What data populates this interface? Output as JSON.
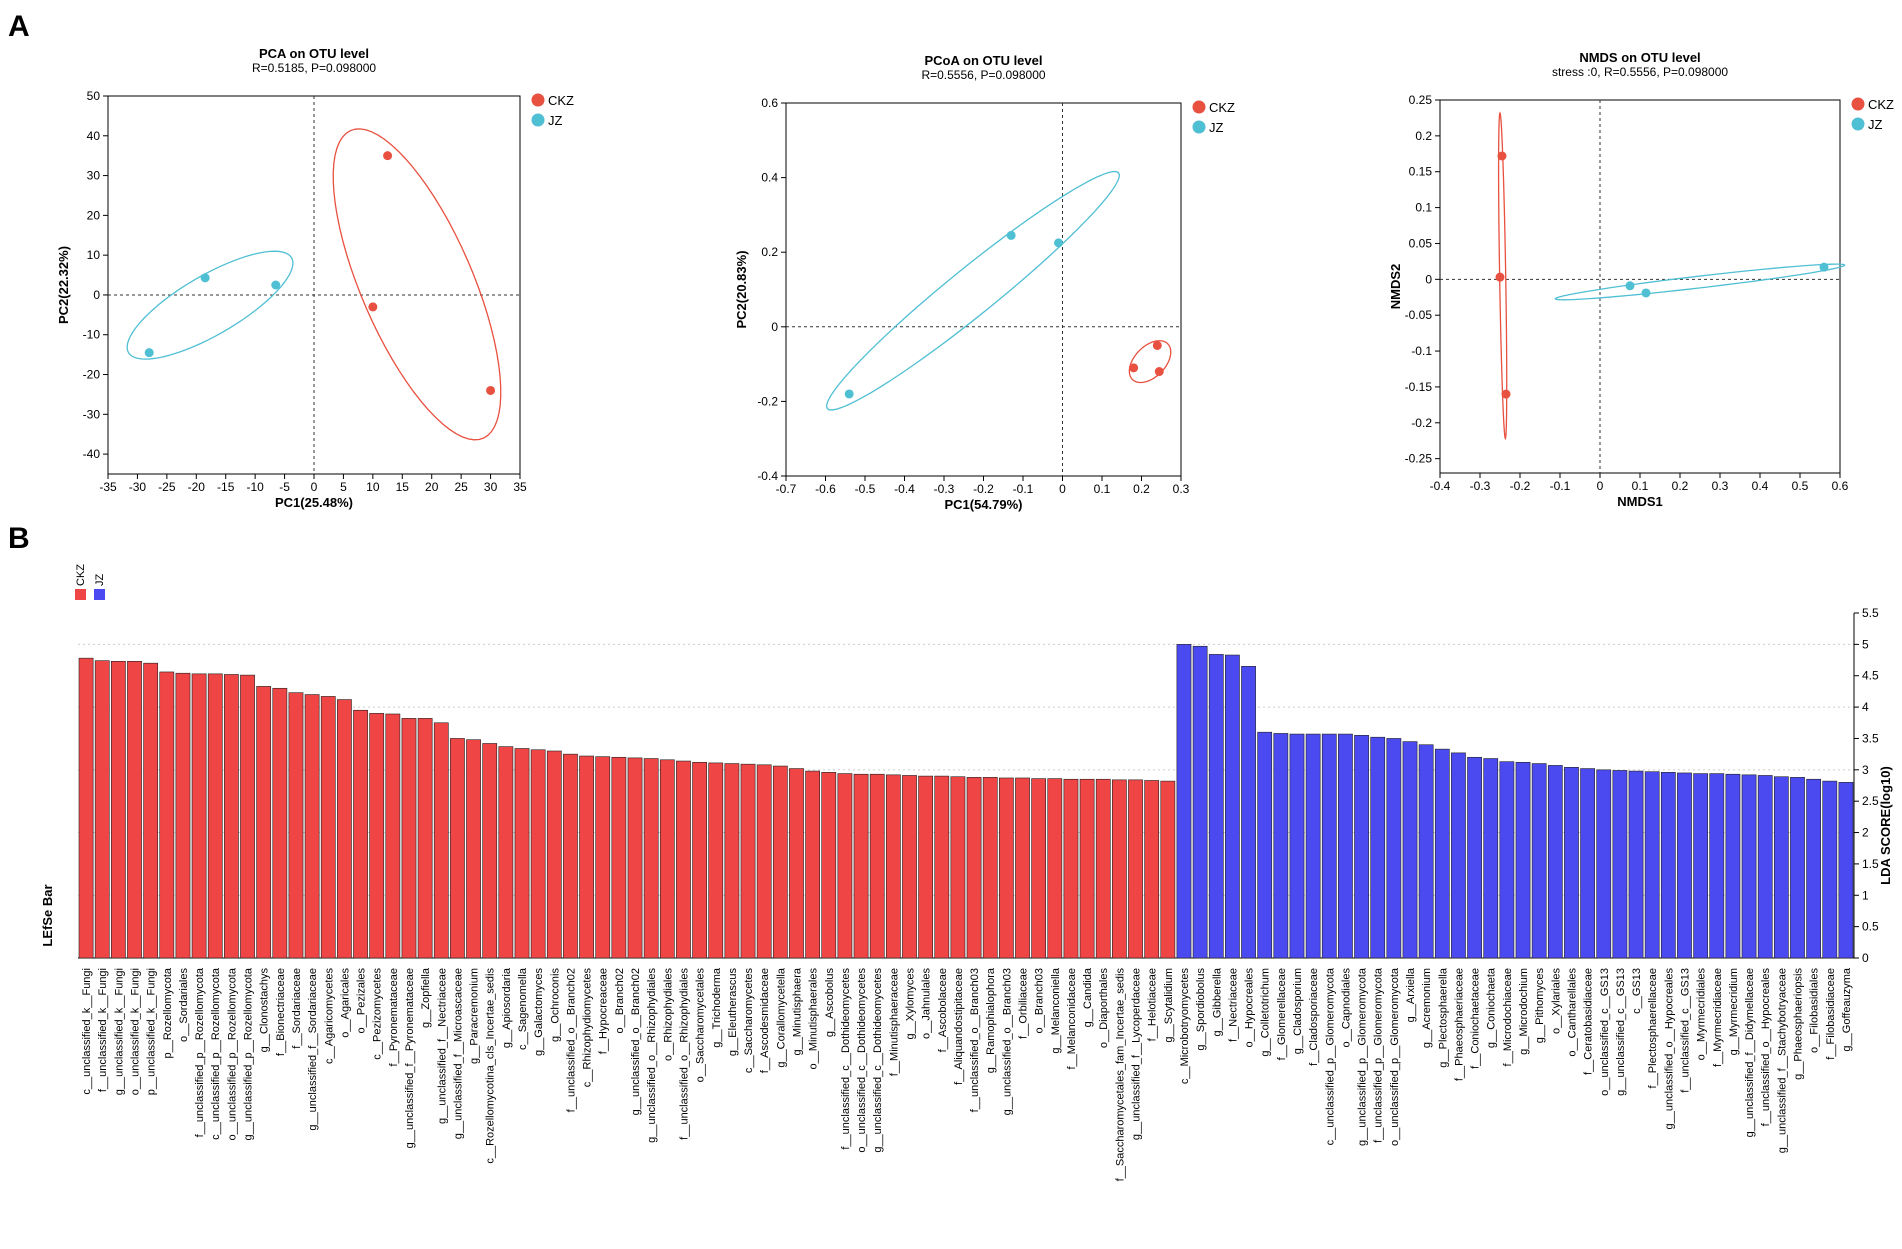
{
  "panels": {
    "a_label": "A",
    "b_label": "B"
  },
  "colors": {
    "ckz": "#e8503f",
    "jz": "#4fbfd3",
    "ckz_bar": "#f04545",
    "jz_bar": "#4a4af0"
  },
  "chart_data": [
    {
      "type": "scatter",
      "title": "PCA on OTU level",
      "subtitle": "R=0.5185, P=0.098000",
      "xlabel": "PC1(25.48%)",
      "ylabel": "PC2(22.32%)",
      "xlim": [
        -35,
        35
      ],
      "ylim": [
        -45,
        50
      ],
      "xticks": [
        -35,
        -30,
        -25,
        -20,
        -15,
        -10,
        -5,
        0,
        5,
        10,
        15,
        20,
        25,
        30,
        35
      ],
      "yticks": [
        -40,
        -30,
        -20,
        -10,
        0,
        10,
        20,
        30,
        40,
        50
      ],
      "legend": [
        "CKZ",
        "JZ"
      ],
      "series": [
        {
          "name": "CKZ",
          "points": [
            [
              12.5,
              35
            ],
            [
              10,
              -3
            ],
            [
              30,
              -24
            ]
          ]
        },
        {
          "name": "JZ",
          "points": [
            [
              -18.5,
              4.3
            ],
            [
              -6.5,
              2.5
            ],
            [
              -28,
              -14.5
            ]
          ]
        }
      ]
    },
    {
      "type": "scatter",
      "title": "PCoA on OTU level",
      "subtitle": "R=0.5556, P=0.098000",
      "xlabel": "PC1(54.79%)",
      "ylabel": "PC2(20.83%)",
      "xlim": [
        -0.7,
        0.3
      ],
      "ylim": [
        -0.4,
        0.6
      ],
      "xticks": [
        -0.7,
        -0.6,
        -0.5,
        -0.4,
        -0.3,
        -0.2,
        -0.1,
        0,
        0.1,
        0.2,
        0.3
      ],
      "yticks": [
        -0.4,
        -0.2,
        0,
        0.2,
        0.4,
        0.6
      ],
      "legend": [
        "CKZ",
        "JZ"
      ],
      "series": [
        {
          "name": "CKZ",
          "points": [
            [
              0.24,
              -0.05
            ],
            [
              0.18,
              -0.11
            ],
            [
              0.245,
              -0.12
            ]
          ]
        },
        {
          "name": "JZ",
          "points": [
            [
              -0.13,
              0.245
            ],
            [
              -0.01,
              0.225
            ],
            [
              -0.54,
              -0.18
            ]
          ]
        }
      ]
    },
    {
      "type": "scatter",
      "title": "NMDS on OTU level",
      "subtitle": "stress :0, R=0.5556, P=0.098000",
      "xlabel": "NMDS1",
      "ylabel": "NMDS2",
      "xlim": [
        -0.4,
        0.6
      ],
      "ylim": [
        -0.27,
        0.25
      ],
      "xticks": [
        -0.4,
        -0.3,
        -0.2,
        -0.1,
        0,
        0.1,
        0.2,
        0.3,
        0.4,
        0.5,
        0.6
      ],
      "yticks": [
        -0.25,
        -0.2,
        -0.15,
        -0.1,
        -0.05,
        0,
        0.05,
        0.1,
        0.15,
        0.2,
        0.25
      ],
      "legend": [
        "CKZ",
        "JZ"
      ],
      "series": [
        {
          "name": "CKZ",
          "points": [
            [
              -0.245,
              0.172
            ],
            [
              -0.25,
              0.003
            ],
            [
              -0.235,
              -0.16
            ]
          ]
        },
        {
          "name": "JZ",
          "points": [
            [
              0.075,
              -0.009
            ],
            [
              0.115,
              -0.019
            ],
            [
              0.56,
              0.017
            ]
          ]
        }
      ]
    },
    {
      "type": "bar",
      "title": "LEfSe Bar",
      "ylabel": "LDA SCORE(log10)",
      "ylim": [
        0,
        5.5
      ],
      "yticks": [
        0,
        0.5,
        1,
        1.5,
        2,
        2.5,
        3,
        3.5,
        4,
        4.5,
        5,
        5.5
      ],
      "legend": [
        "CKZ",
        "JZ"
      ],
      "series": [
        {
          "name": "CKZ",
          "categories": [
            "c__unclassified_k__Fungi",
            "f__unclassified_k__Fungi",
            "g__unclassified_k__Fungi",
            "o__unclassified_k__Fungi",
            "p__unclassified_k__Fungi",
            "p__Rozellomycota",
            "o__Sordariales",
            "f__unclassified_p__Rozellomycota",
            "c__unclassified_p__Rozellomycota",
            "o__unclassified_p__Rozellomycota",
            "g__unclassified_p__Rozellomycota",
            "g__Clonostachys",
            "f__Bionectriaceae",
            "f__Sordariaceae",
            "g__unclassified_f__Sordariaceae",
            "c__Agaricomycetes",
            "o__Agaricales",
            "o__Pezizales",
            "c__Pezizomycetes",
            "f__Pyronemataceae",
            "g__unclassified_f__Pyronemataceae",
            "g__Zopfiella",
            "g__unclassified_f__Nectriaceae",
            "g__unclassified_f__Microascaceae",
            "g__Paracremonium",
            "c__Rozellomycotina_cls_Incertae_sedis",
            "g__Apiosordaria",
            "c__Sagenomella",
            "g__Galactomyces",
            "g__Ochroconis",
            "f__unclassified_o__Branch02",
            "c__Rhizophydiomycetes",
            "f__Hypocreaceae",
            "o__Branch02",
            "g__unclassified_o__Branch02",
            "g__unclassified_o__Rhizophydiales",
            "o__Rhizophydiales",
            "f__unclassified_o__Rhizophydiales",
            "o__Saccharomycetales",
            "g__Trichoderma",
            "g__Eleutherascus",
            "c__Saccharomycetes",
            "f__Ascodesmidaceae",
            "g__Corallomycetella",
            "g__Minutisphaera",
            "o__Minutisphaerales",
            "g__Ascobolus",
            "f__unclassified_c__Dothideomycetes",
            "o__unclassified_c__Dothideomycetes",
            "g__unclassified_c__Dothideomycetes",
            "f__Minutisphaeraceae",
            "g__Xylomyces",
            "o__Jahnulales",
            "f__Ascobolaceae",
            "f__Aliquandostipitaceae",
            "f__unclassified_o__Branch03",
            "g__Ramophialophora",
            "g__unclassified_o__Branch03",
            "f__Orbiliaceae",
            "o__Branch03",
            "g__Melanconiella",
            "f__Melanconidaceae",
            "g__Candida",
            "o__Diaporthales",
            "f__Saccharomycetales_fam_Incertae_sedis",
            "g__unclassified_f__Lycoperdaceae",
            "f__Helotiaceae",
            "g__Scytalidium"
          ],
          "values": [
            4.78,
            4.74,
            4.73,
            4.73,
            4.7,
            4.56,
            4.54,
            4.53,
            4.53,
            4.52,
            4.51,
            4.33,
            4.3,
            4.23,
            4.2,
            4.17,
            4.12,
            3.95,
            3.9,
            3.89,
            3.82,
            3.82,
            3.75,
            3.5,
            3.48,
            3.42,
            3.37,
            3.34,
            3.32,
            3.3,
            3.25,
            3.22,
            3.21,
            3.2,
            3.19,
            3.18,
            3.16,
            3.14,
            3.12,
            3.11,
            3.1,
            3.09,
            3.08,
            3.06,
            3.02,
            2.98,
            2.96,
            2.94,
            2.93,
            2.93,
            2.92,
            2.91,
            2.9,
            2.9,
            2.89,
            2.88,
            2.88,
            2.87,
            2.87,
            2.86,
            2.86,
            2.85,
            2.85,
            2.85,
            2.84,
            2.84,
            2.83,
            2.82
          ]
        },
        {
          "name": "JZ",
          "categories": [
            "c__Microbotryomycetes",
            "g__Spordiobolus",
            "g__Gibberella",
            "f__Nectriaceae",
            "o__Hypocreales",
            "g__Colletotrichum",
            "f__Glomerellaceae",
            "g__Cladosporium",
            "f__Cladosporiaceae",
            "c__unclassified_p__Glomeromycota",
            "o__Capnodiales",
            "g__unclassified_p__Glomeromycota",
            "f__unclassified_p__Glomeromycota",
            "o__unclassified_p__Glomeromycota",
            "g__Arxiella",
            "g__Acremonium",
            "g__Plectosphaerella",
            "f__Phaeosphaeriaceae",
            "f__Coniochaetaceae",
            "g__Coniochaeta",
            "f__Microdochiaceae",
            "g__Microdochium",
            "g__Pithomyces",
            "o__Xylariales",
            "o__Cantharellales",
            "f__Ceratobasidiaceae",
            "o__unclassified_c__GS13",
            "g__unclassified_c__GS13",
            "c__GS13",
            "f__Plectosphaerellaceae",
            "g__unclassified_o__Hypocreales",
            "f__unclassified_c__GS13",
            "o__Myrmecridiales",
            "f__Myrmecridiaceae",
            "g__Myrmecridium",
            "g__unclassified_f__Didymellaceae",
            "f__unclassified_o__Hypocreales",
            "g__unclassified_f__Stachybotryaceae",
            "g__Phaeosphaeriopsis",
            "o__Filobasidiales",
            "f__Filobasidiaceae",
            "g__Goffeauzyma"
          ],
          "values": [
            5.0,
            4.97,
            4.84,
            4.83,
            4.65,
            3.6,
            3.58,
            3.57,
            3.57,
            3.57,
            3.57,
            3.55,
            3.52,
            3.5,
            3.45,
            3.4,
            3.33,
            3.27,
            3.2,
            3.18,
            3.13,
            3.12,
            3.1,
            3.07,
            3.04,
            3.02,
            3.0,
            2.99,
            2.98,
            2.97,
            2.96,
            2.95,
            2.94,
            2.94,
            2.93,
            2.92,
            2.91,
            2.89,
            2.88,
            2.85,
            2.82,
            2.8
          ]
        }
      ]
    }
  ]
}
